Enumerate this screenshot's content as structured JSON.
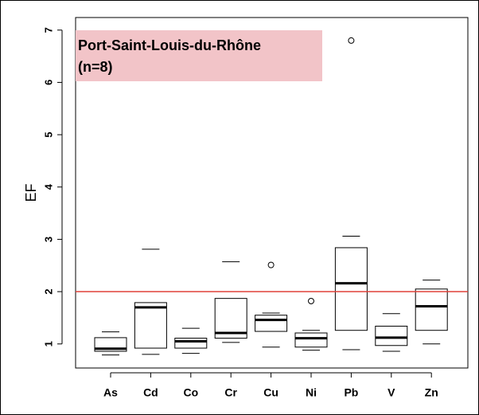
{
  "chart_data": {
    "type": "box",
    "ylabel": "EF",
    "annotation": [
      "Port-Saint-Louis-du-Rhône",
      "(n=8)"
    ],
    "annotation_color": "#f2c4c8",
    "categories": [
      "As",
      "Cd",
      "Co",
      "Cr",
      "Cu",
      "Ni",
      "Pb",
      "V",
      "Zn"
    ],
    "boxes": [
      {
        "min": 0.79,
        "q1": 0.86,
        "median": 0.91,
        "q3": 1.12,
        "max": 1.23,
        "outliers": []
      },
      {
        "min": 0.8,
        "q1": 0.92,
        "median": 1.7,
        "q3": 1.79,
        "max": 2.81,
        "outliers": []
      },
      {
        "min": 0.82,
        "q1": 0.92,
        "median": 1.05,
        "q3": 1.11,
        "max": 1.3,
        "outliers": []
      },
      {
        "min": 1.03,
        "q1": 1.11,
        "median": 1.21,
        "q3": 1.87,
        "max": 2.57,
        "outliers": []
      },
      {
        "min": 0.94,
        "q1": 1.24,
        "median": 1.46,
        "q3": 1.55,
        "max": 1.59,
        "outliers": [
          2.51
        ]
      },
      {
        "min": 0.88,
        "q1": 0.94,
        "median": 1.11,
        "q3": 1.21,
        "max": 1.26,
        "outliers": [
          1.82
        ]
      },
      {
        "min": 0.89,
        "q1": 1.26,
        "median": 2.16,
        "q3": 2.84,
        "max": 3.06,
        "outliers": [
          6.8
        ]
      },
      {
        "min": 0.86,
        "q1": 0.97,
        "median": 1.12,
        "q3": 1.34,
        "max": 1.58,
        "outliers": []
      },
      {
        "min": 1.0,
        "q1": 1.26,
        "median": 1.72,
        "q3": 2.05,
        "max": 2.22,
        "outliers": []
      }
    ],
    "hline": 2,
    "hline_color": "#e0423a",
    "ylim": [
      0.54,
      7.24
    ],
    "yticks": [
      1,
      2,
      3,
      4,
      5,
      6,
      7
    ]
  }
}
